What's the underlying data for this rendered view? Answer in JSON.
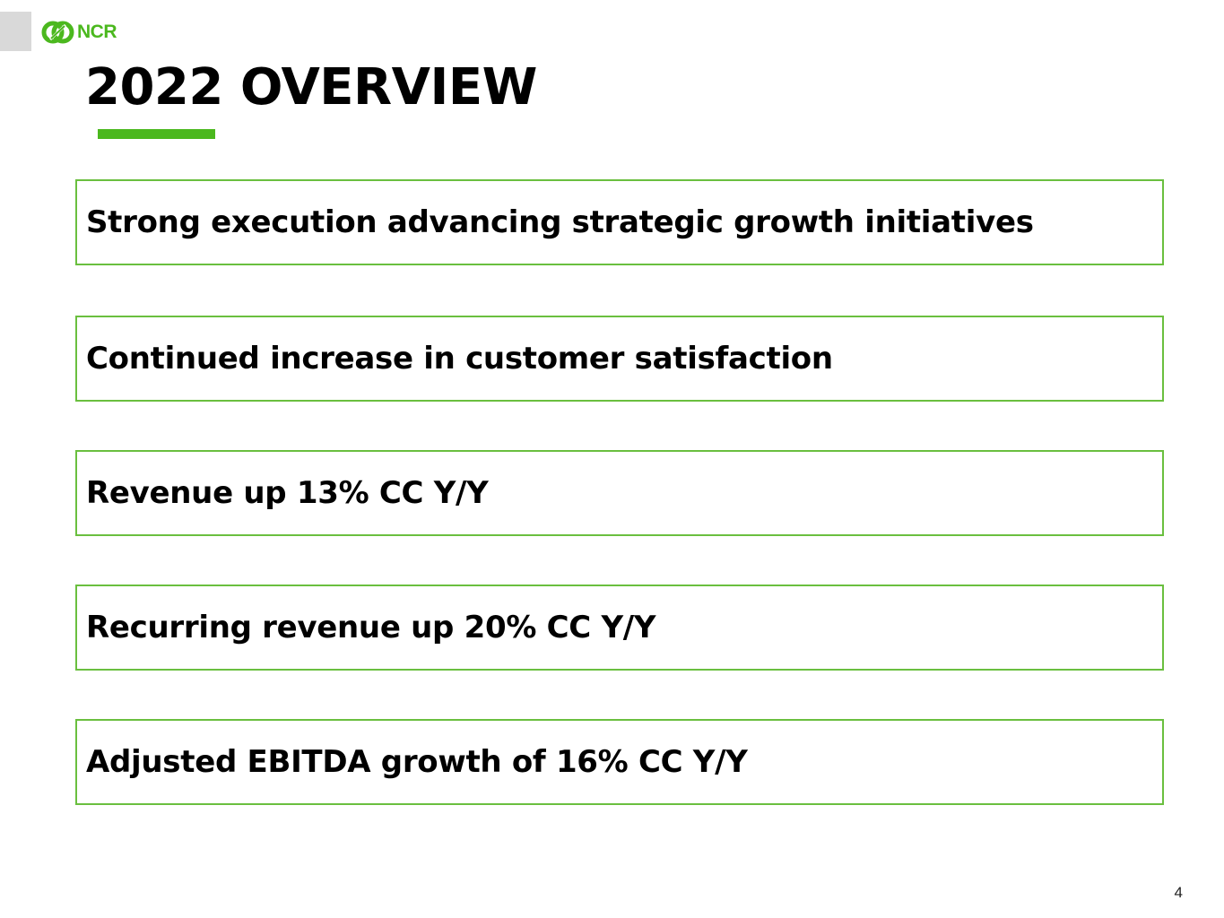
{
  "header": {
    "logo_text": "NCR",
    "title": "2022 OVERVIEW"
  },
  "highlights": [
    "Strong execution advancing strategic growth initiatives",
    "Continued increase in customer satisfaction",
    "Revenue up 13% CC Y/Y",
    "Recurring revenue up 20% CC Y/Y",
    "Adjusted EBITDA growth of 16% CC Y/Y"
  ],
  "footer": {
    "page_number": "4"
  },
  "colors": {
    "brand_green": "#4bb81e",
    "box_border": "#6abf3f",
    "corner_tab": "#d9d9d9"
  },
  "icons": {
    "logo": "ncr-logo-icon"
  }
}
